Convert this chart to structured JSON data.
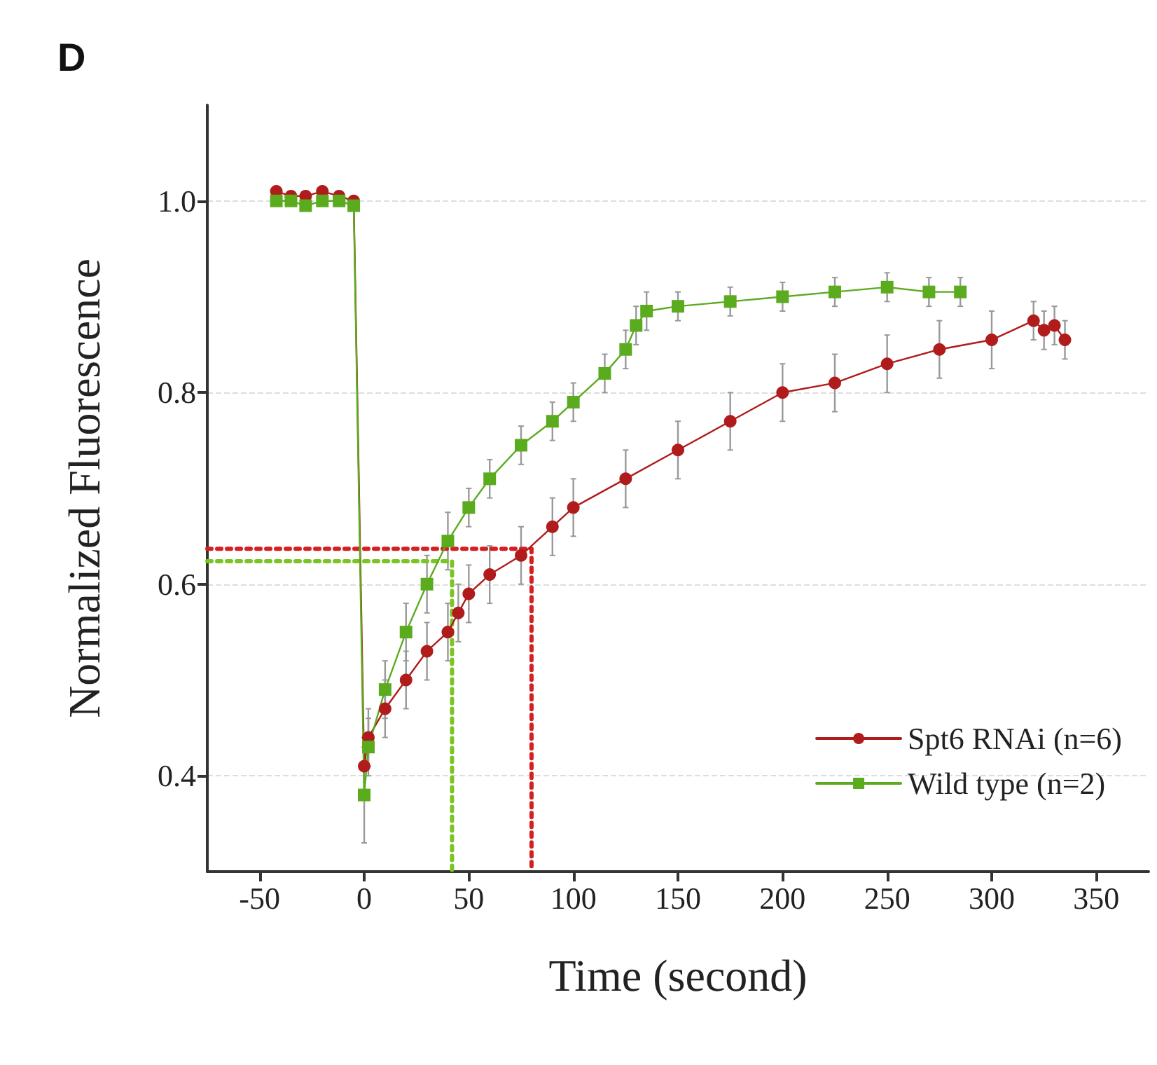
{
  "chart_data": {
    "type": "line",
    "title": "D",
    "xlabel": "Time (second)",
    "ylabel": "Normalized Fluorescence",
    "xlim": [
      -75,
      375
    ],
    "xticks": [
      -50,
      0,
      50,
      100,
      150,
      200,
      250,
      300,
      350
    ],
    "ylim": [
      0.3,
      1.1
    ],
    "yticks": [
      {
        "value": 0.4,
        "label": "0.4"
      },
      {
        "value": 0.6,
        "label": "0.6"
      },
      {
        "value": 0.8,
        "label": "0.8"
      },
      {
        "value": 1.0,
        "label": "1.0"
      }
    ],
    "grid": "y",
    "legend": "bottom right",
    "series": [
      {
        "name": "Spt6 RNAi (n=6)",
        "color": "#b01c1c",
        "marker": "circle",
        "x": [
          -42,
          -35,
          -28,
          -20,
          -12,
          -5,
          0,
          2,
          10,
          20,
          30,
          40,
          45,
          50,
          60,
          75,
          90,
          100,
          125,
          150,
          175,
          200,
          225,
          250,
          275,
          300,
          320,
          325,
          330,
          335
        ],
        "values": [
          1.01,
          1.005,
          1.005,
          1.01,
          1.005,
          1.0,
          0.41,
          0.44,
          0.47,
          0.5,
          0.53,
          0.55,
          0.57,
          0.59,
          0.61,
          0.63,
          0.66,
          0.68,
          0.71,
          0.74,
          0.77,
          0.8,
          0.81,
          0.83,
          0.845,
          0.855,
          0.875,
          0.865,
          0.87,
          0.855
        ],
        "errors": [
          null,
          null,
          null,
          null,
          null,
          null,
          0.03,
          0.03,
          0.03,
          0.03,
          0.03,
          0.03,
          0.03,
          0.03,
          0.03,
          0.03,
          0.03,
          0.03,
          0.03,
          0.03,
          0.03,
          0.03,
          0.03,
          0.03,
          0.03,
          0.03,
          0.02,
          0.02,
          0.02,
          0.02
        ]
      },
      {
        "name": "Wild type (n=2)",
        "color": "#5aab1e",
        "marker": "square",
        "x": [
          -42,
          -35,
          -28,
          -20,
          -12,
          -5,
          0,
          2,
          10,
          20,
          30,
          40,
          50,
          60,
          75,
          90,
          100,
          115,
          125,
          130,
          135,
          150,
          175,
          200,
          225,
          250,
          270,
          285
        ],
        "values": [
          1.0,
          1.0,
          0.995,
          1.0,
          1.0,
          0.995,
          0.38,
          0.43,
          0.49,
          0.55,
          0.6,
          0.645,
          0.68,
          0.71,
          0.745,
          0.77,
          0.79,
          0.82,
          0.845,
          0.87,
          0.885,
          0.89,
          0.895,
          0.9,
          0.905,
          0.91,
          0.905,
          0.905
        ],
        "errors": [
          null,
          null,
          null,
          null,
          null,
          null,
          0.05,
          0.03,
          0.03,
          0.03,
          0.03,
          0.03,
          0.02,
          0.02,
          0.02,
          0.02,
          0.02,
          0.02,
          0.02,
          0.02,
          0.02,
          0.015,
          0.015,
          0.015,
          0.015,
          0.015,
          0.015,
          0.015
        ]
      },
      {
        "color": "#d42020",
        "marker": "none",
        "line_style": "dotted",
        "x": [
          -75,
          80,
          80
        ],
        "values": [
          0.637,
          0.637,
          0.3
        ]
      },
      {
        "color": "#7cc424",
        "marker": "none",
        "line_style": "dotted",
        "x": [
          -75,
          42,
          42
        ],
        "values": [
          0.624,
          0.624,
          0.3
        ]
      }
    ]
  }
}
